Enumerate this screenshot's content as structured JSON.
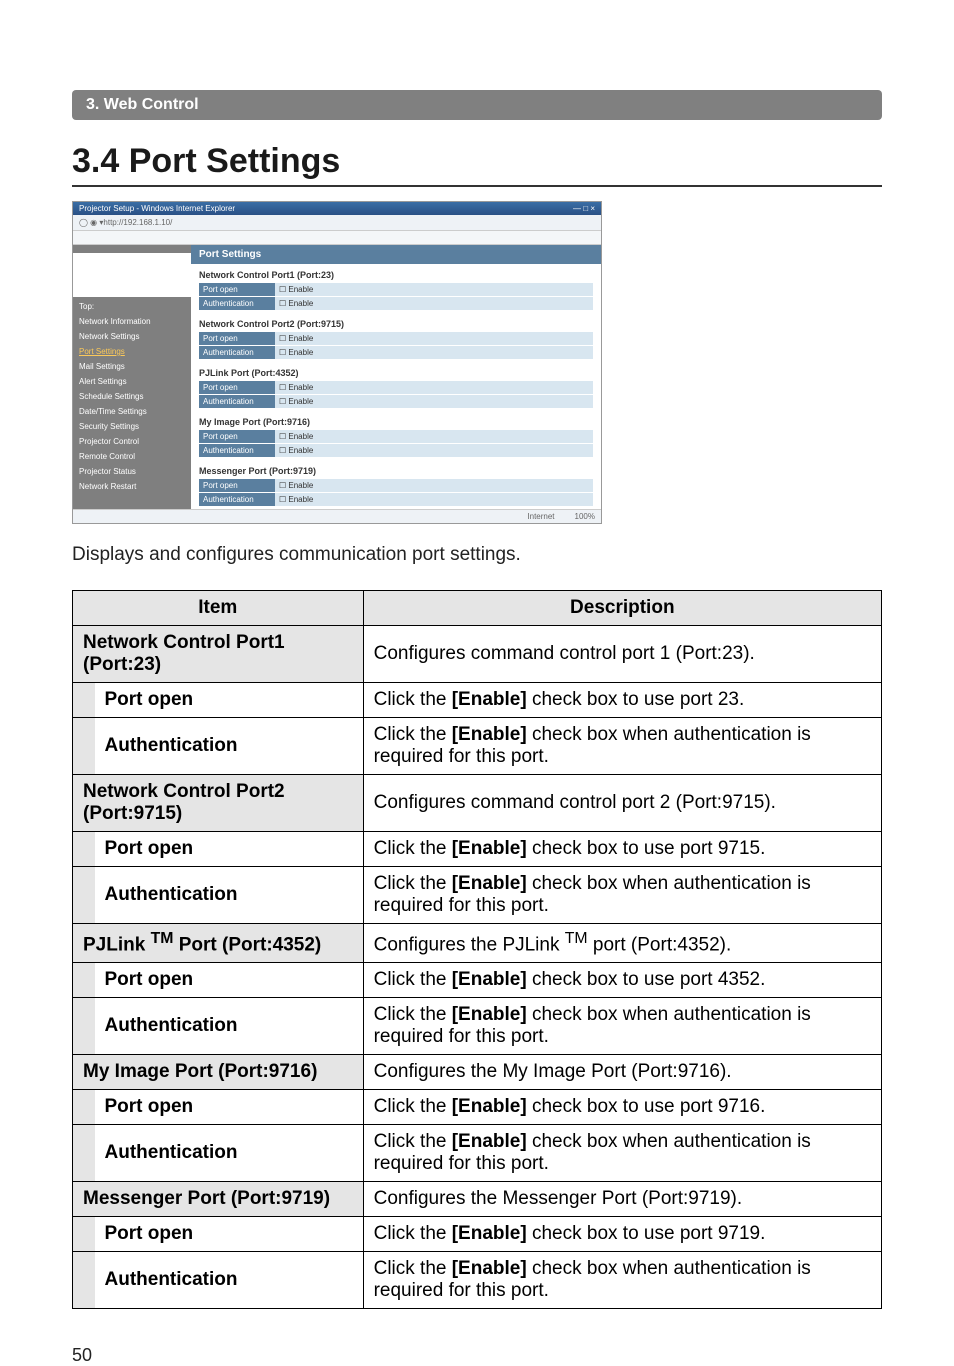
{
  "header_bar": "3. Web Control",
  "section_title": "3.4 Port Settings",
  "screenshot": {
    "window_title": "Projector Setup - Windows Internet Explorer",
    "address": "http://192.168.1.10/",
    "sidebar": {
      "items": [
        "Top:",
        "Network Information",
        "Network Settings",
        "Port Settings",
        "Mail Settings",
        "Alert Settings",
        "Schedule Settings",
        "Date/Time Settings",
        "Security Settings",
        "Projector Control",
        "Remote Control",
        "Projector Status",
        "Network Restart"
      ],
      "active_index": 3
    },
    "main_title": "Port Settings",
    "groups": [
      {
        "title": "Network Control Port1 (Port:23)",
        "rows": [
          [
            "Port open",
            "Enable"
          ],
          [
            "Authentication",
            "Enable"
          ]
        ]
      },
      {
        "title": "Network Control Port2 (Port:9715)",
        "rows": [
          [
            "Port open",
            "Enable"
          ],
          [
            "Authentication",
            "Enable"
          ]
        ]
      },
      {
        "title": "PJLink Port (Port:4352)",
        "rows": [
          [
            "Port open",
            "Enable"
          ],
          [
            "Authentication",
            "Enable"
          ]
        ]
      },
      {
        "title": "My Image Port (Port:9716)",
        "rows": [
          [
            "Port open",
            "Enable"
          ],
          [
            "Authentication",
            "Enable"
          ]
        ]
      },
      {
        "title": "Messenger Port (Port:9719)",
        "rows": [
          [
            "Port open",
            "Enable"
          ],
          [
            "Authentication",
            "Enable"
          ]
        ]
      }
    ],
    "status_left": "Internet",
    "status_right": "100%"
  },
  "intro_text": "Displays and configures communication port settings.",
  "table": {
    "headers": [
      "Item",
      "Description"
    ],
    "sections": [
      {
        "title": "Network Control Port1 (Port:23)",
        "desc": "Configures command control port 1 (Port:23).",
        "rows": [
          {
            "item": "Port open",
            "desc_pre": "Click the ",
            "desc_bold": "[Enable]",
            "desc_post": " check box to use port 23."
          },
          {
            "item": "Authentication",
            "desc_pre": "Click the ",
            "desc_bold": "[Enable]",
            "desc_post": " check box when authentication is required for this port."
          }
        ]
      },
      {
        "title": "Network Control Port2 (Port:9715)",
        "desc": "Configures command control port 2 (Port:9715).",
        "rows": [
          {
            "item": "Port open",
            "desc_pre": "Click the ",
            "desc_bold": "[Enable]",
            "desc_post": " check box to use port 9715."
          },
          {
            "item": "Authentication",
            "desc_pre": "Click the ",
            "desc_bold": "[Enable]",
            "desc_post": " check box when authentication is required for this port."
          }
        ]
      },
      {
        "title_html": "PJLink ™ Port (Port:4352)",
        "desc_html": "Configures the PJLink ™ port (Port:4352).",
        "rows": [
          {
            "item": "Port open",
            "desc_pre": "Click the ",
            "desc_bold": "[Enable]",
            "desc_post": " check box to use port 4352."
          },
          {
            "item": "Authentication",
            "desc_pre": "Click the ",
            "desc_bold": "[Enable]",
            "desc_post": " check box when authentication is required for this port."
          }
        ]
      },
      {
        "title": "My Image Port (Port:9716)",
        "desc": "Configures the My Image Port (Port:9716).",
        "rows": [
          {
            "item": "Port open",
            "desc_pre": "Click the ",
            "desc_bold": "[Enable]",
            "desc_post": " check box to use port 9716."
          },
          {
            "item": "Authentication",
            "desc_pre": "Click the ",
            "desc_bold": "[Enable]",
            "desc_post": " check box when authentication is required for this port."
          }
        ]
      },
      {
        "title": "Messenger Port (Port:9719)",
        "desc": "Configures the Messenger Port (Port:9719).",
        "rows": [
          {
            "item": "Port open",
            "desc_pre": "Click the ",
            "desc_bold": "[Enable]",
            "desc_post": " check box to use port 9719."
          },
          {
            "item": "Authentication",
            "desc_pre": "Click the ",
            "desc_bold": "[Enable]",
            "desc_post": " check box when authentication is required for this port."
          }
        ]
      }
    ]
  },
  "page_number": "50"
}
